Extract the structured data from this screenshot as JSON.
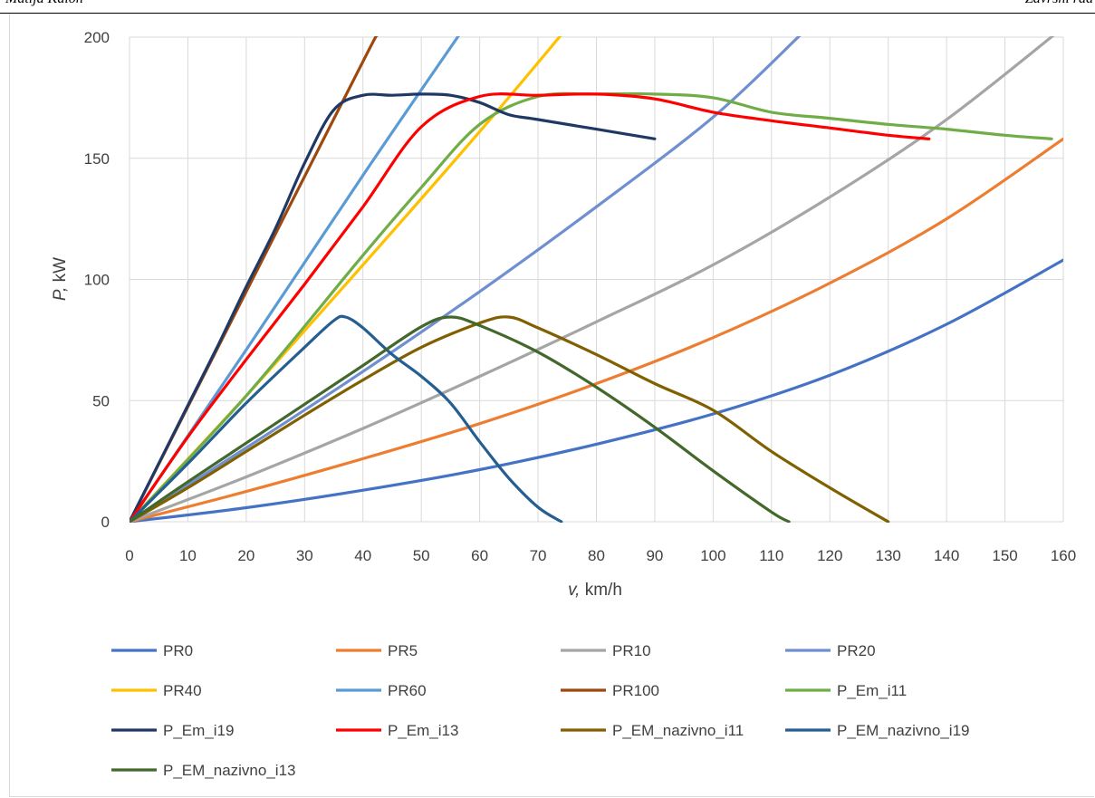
{
  "header": {
    "left": "Matija Kaloh",
    "right": "Završni rad"
  },
  "chart_data": {
    "type": "line",
    "title": "",
    "xlabel_italic": "v,",
    "xlabel_rest": " km/h",
    "ylabel_italic": "P,",
    "ylabel_rest": " kW",
    "xlim": [
      0,
      160
    ],
    "ylim": [
      0,
      200
    ],
    "x_ticks": [
      "0",
      "10",
      "20",
      "30",
      "40",
      "50",
      "60",
      "70",
      "80",
      "90",
      "100",
      "110",
      "120",
      "130",
      "140",
      "150",
      "160"
    ],
    "y_ticks": [
      "0",
      "50",
      "100",
      "150",
      "200"
    ],
    "grid": true,
    "legend_position": "bottom",
    "series": [
      {
        "name": "PR0",
        "color": "#4472C4",
        "x": [
          0,
          20,
          40,
          60,
          80,
          100,
          120,
          140,
          160
        ],
        "y": [
          0,
          5.8,
          13,
          21.5,
          32,
          44.5,
          60.5,
          81.5,
          108
        ]
      },
      {
        "name": "PR5",
        "color": "#ED7D31",
        "x": [
          0,
          20,
          40,
          60,
          80,
          100,
          120,
          140,
          160
        ],
        "y": [
          0,
          12.5,
          26,
          40.5,
          57,
          76,
          98.5,
          125,
          158
        ]
      },
      {
        "name": "PR10",
        "color": "#A5A5A5",
        "x": [
          0,
          20,
          40,
          60,
          80,
          100,
          120,
          140,
          160
        ],
        "y": [
          0,
          18.5,
          38.5,
          60,
          82.5,
          106,
          134,
          166,
          204
        ]
      },
      {
        "name": "PR20",
        "color": "#6F8FD0",
        "x": [
          0,
          20,
          40,
          60,
          80,
          100,
          115
        ],
        "y": [
          0,
          30.5,
          62,
          95,
          130,
          167,
          201
        ]
      },
      {
        "name": "PR40",
        "color": "#FFC000",
        "x": [
          0,
          20,
          40,
          60,
          74
        ],
        "y": [
          0,
          52,
          106,
          161,
          201
        ]
      },
      {
        "name": "PR60",
        "color": "#5B9BD5",
        "x": [
          0,
          20,
          40,
          56.5
        ],
        "y": [
          0,
          71,
          143,
          201
        ]
      },
      {
        "name": "PR100",
        "color": "#9E480E",
        "x": [
          0,
          20,
          40,
          42.5
        ],
        "y": [
          0,
          95,
          190,
          201
        ]
      },
      {
        "name": "P_Em_i11",
        "color": "#70AD47",
        "x": [
          0,
          20,
          40,
          50,
          60,
          70,
          80,
          90,
          100,
          110,
          120,
          130,
          140,
          150,
          158
        ],
        "y": [
          0,
          52,
          110,
          138,
          164,
          175.5,
          176.5,
          176.5,
          175,
          169,
          166.5,
          164,
          162,
          159.5,
          158
        ]
      },
      {
        "name": "P_Em_i19",
        "color": "#203864",
        "x": [
          0,
          10,
          15,
          20,
          25,
          30,
          35,
          40,
          45,
          50,
          55,
          60,
          65,
          70,
          80,
          90
        ],
        "y": [
          0,
          48,
          72,
          97,
          121,
          148,
          170,
          176,
          176,
          176.5,
          176,
          173,
          168,
          166,
          162,
          158
        ]
      },
      {
        "name": "P_Em_i13",
        "color": "#FF0000",
        "x": [
          0,
          10,
          20,
          30,
          40,
          50,
          60,
          70,
          80,
          90,
          100,
          110,
          120,
          130,
          137
        ],
        "y": [
          0,
          35,
          67,
          98,
          130,
          163,
          175.5,
          176,
          176.5,
          174.5,
          169,
          165.5,
          162.5,
          159.5,
          158
        ]
      },
      {
        "name": "P_EM_nazivno_i11",
        "color": "#806000",
        "x": [
          0,
          10,
          20,
          30,
          40,
          50,
          60,
          65,
          70,
          80,
          90,
          100,
          110,
          120,
          130
        ],
        "y": [
          0,
          14,
          29,
          44,
          58.5,
          72,
          82,
          84.5,
          80,
          69,
          57,
          46,
          29,
          14,
          0
        ]
      },
      {
        "name": "P_EM_nazivno_i19",
        "color": "#255E91",
        "x": [
          0,
          10,
          20,
          30,
          35,
          37,
          40,
          45,
          50,
          55,
          60,
          65,
          70,
          74
        ],
        "y": [
          0,
          24,
          49,
          72,
          83,
          84.5,
          80,
          69,
          60,
          49,
          33,
          18,
          6,
          0
        ]
      },
      {
        "name": "P_EM_nazivno_i13",
        "color": "#43682B",
        "x": [
          0,
          10,
          20,
          30,
          40,
          50,
          55,
          60,
          70,
          80,
          90,
          100,
          110,
          113
        ],
        "y": [
          0,
          16.5,
          32.5,
          48.5,
          64.5,
          80.5,
          84.5,
          81,
          70,
          55.5,
          39,
          21,
          4,
          0
        ]
      }
    ]
  }
}
